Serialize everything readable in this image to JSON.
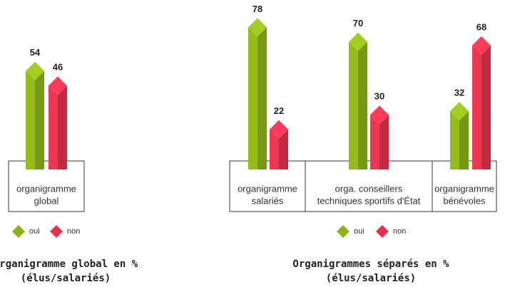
{
  "chart_data": [
    {
      "type": "bar",
      "title": [
        "Organigramme global en %",
        "(élus/salariés)"
      ],
      "categories": [
        [
          "organigramme",
          "global"
        ]
      ],
      "series": [
        {
          "name": "oui",
          "color": "#8cb31b",
          "values": [
            54
          ]
        },
        {
          "name": "non",
          "color": "#e2334e",
          "values": [
            46
          ]
        }
      ]
    },
    {
      "type": "bar",
      "title": [
        "Organigrammes séparés en %",
        "(élus/salariés)"
      ],
      "categories": [
        [
          "organigramme",
          "salariés"
        ],
        [
          "orga. conseillers",
          "techniques sportifs d'État"
        ],
        [
          "organigramme",
          "bénévoles"
        ]
      ],
      "series": [
        {
          "name": "oui",
          "color": "#8cb31b",
          "values": [
            78,
            70,
            32
          ]
        },
        {
          "name": "non",
          "color": "#e2334e",
          "values": [
            22,
            30,
            68
          ]
        }
      ]
    }
  ]
}
